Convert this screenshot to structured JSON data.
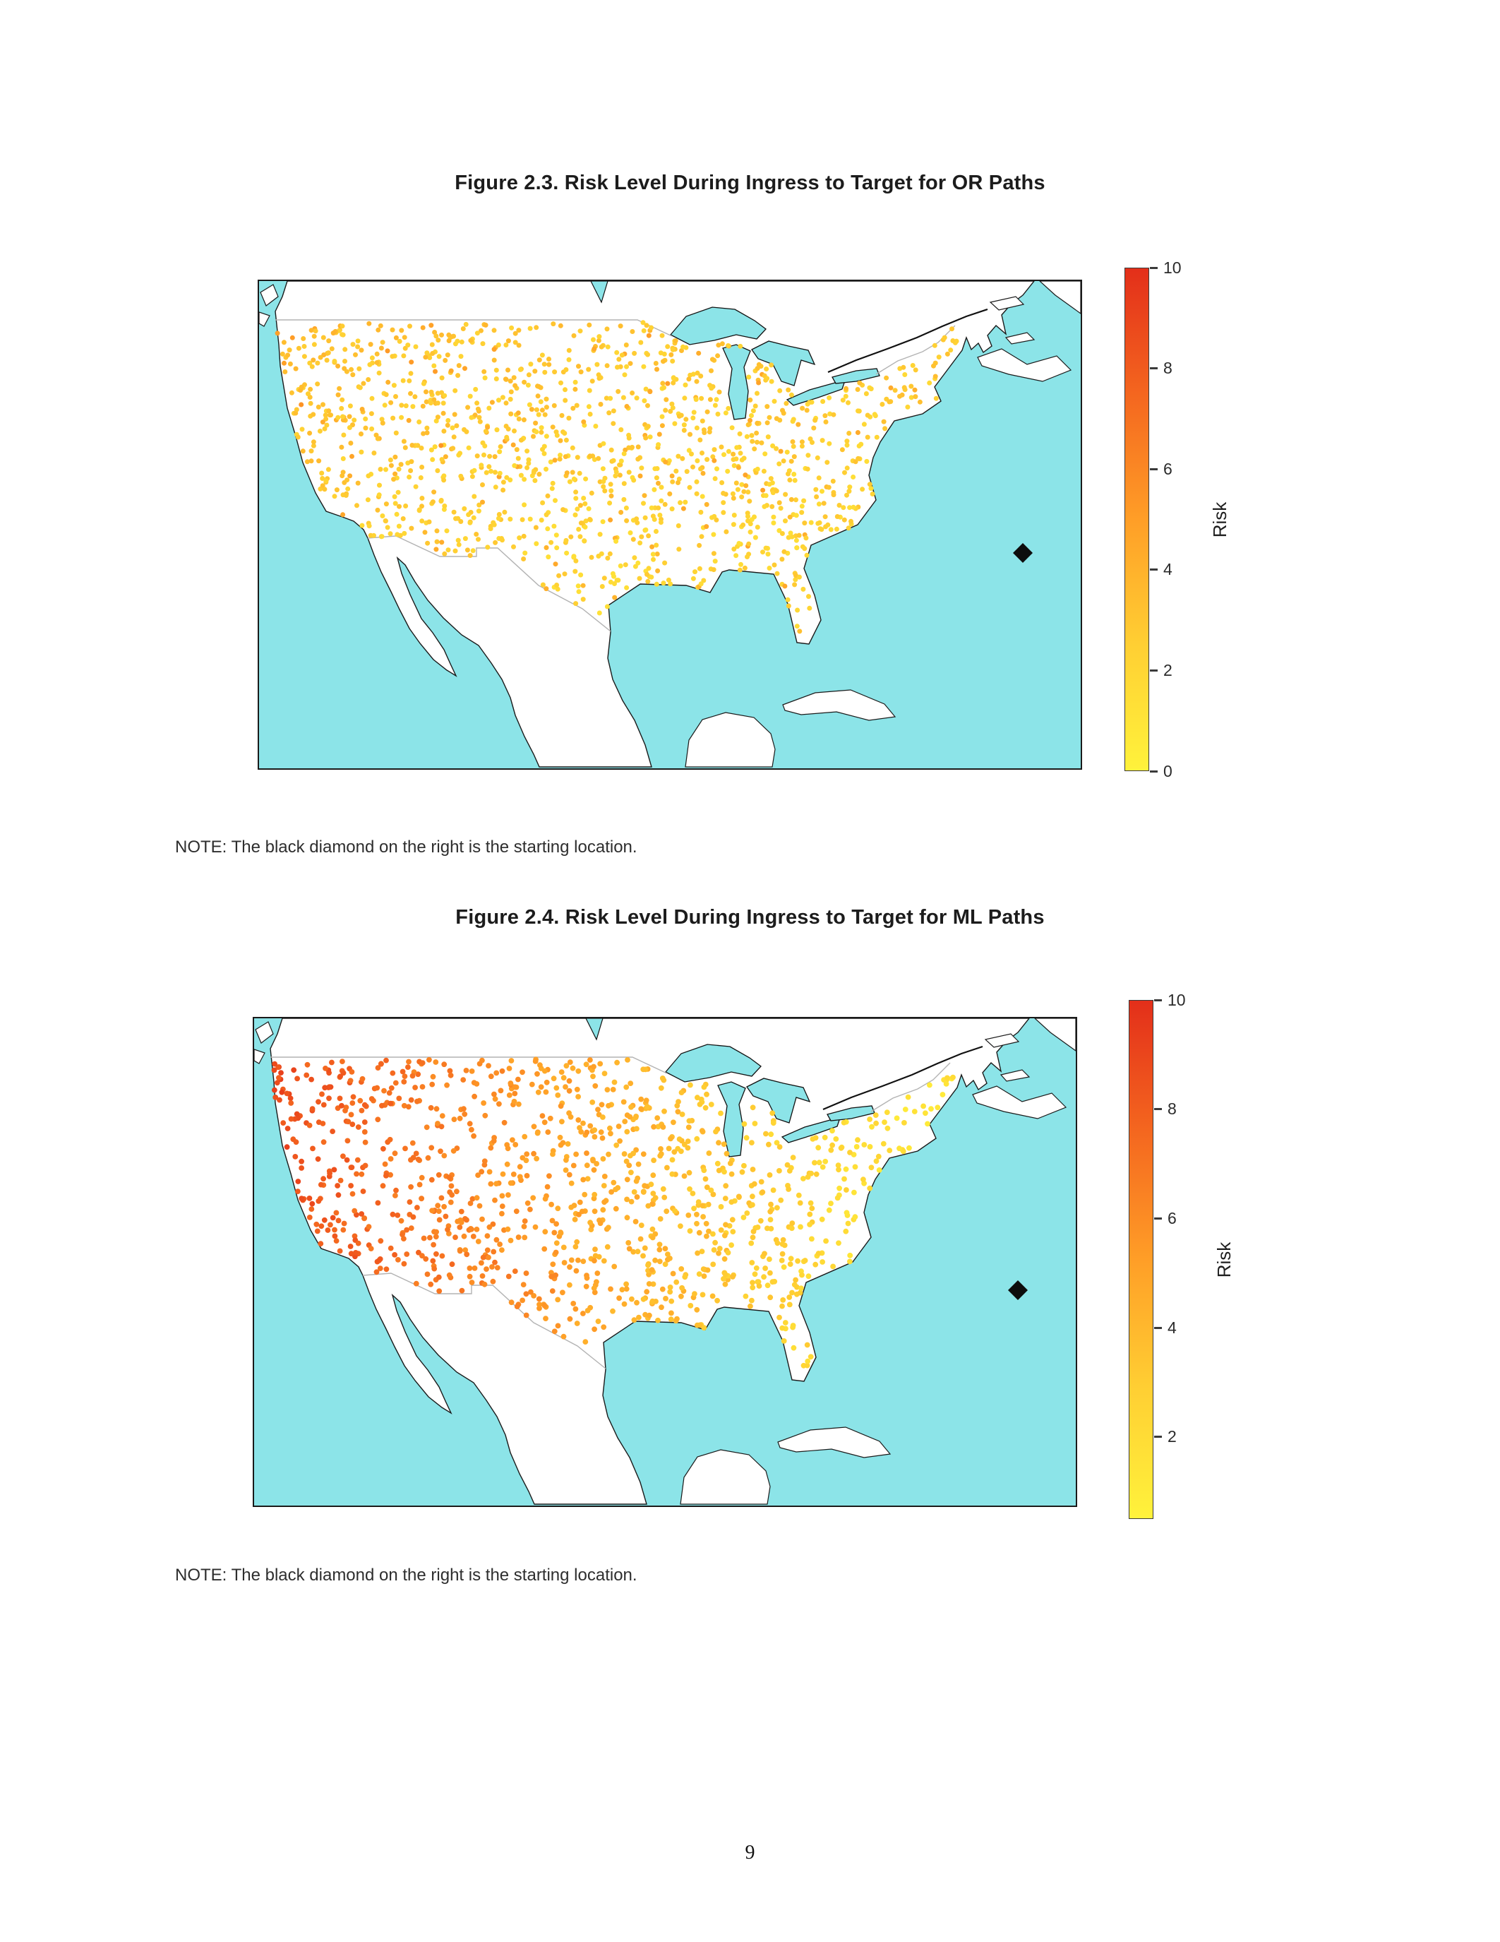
{
  "page": {
    "number": "9"
  },
  "figures": [
    {
      "id": "figure-2-3",
      "caption": "Figure 2.3. Risk Level During Ingress to Target for OR Paths",
      "note": "NOTE: The black diamond on the right is the starting location.",
      "colorbar": {
        "label": "Risk",
        "min": 0,
        "max": 10,
        "ticks": [
          0,
          2,
          4,
          6,
          8,
          10
        ]
      }
    },
    {
      "id": "figure-2-4",
      "caption": "Figure 2.4. Risk Level During Ingress to Target for ML Paths",
      "note": "NOTE: The black diamond on the right is the starting location.",
      "colorbar": {
        "label": "Risk",
        "min": 0.5,
        "max": 10,
        "ticks": [
          2,
          4,
          6,
          8,
          10
        ]
      }
    }
  ],
  "chart_data": [
    {
      "type": "scatter",
      "title": "Figure 2.3. Risk Level During Ingress to Target for OR Paths",
      "geography": "Contiguous United States with southern Canada, Mexico, Great Lakes and Cuba shown for context",
      "colorbar_label": "Risk",
      "colorbar_range": [
        0,
        10
      ],
      "colorbar_ticks": [
        0,
        2,
        4,
        6,
        8,
        10
      ],
      "n_points_approx": 1350,
      "risk_pattern": "Nearly uniform low risk (about 1-3, yellow to gold) at target points across the entire United States; slightly higher risk (about 3-5, light orange) scattered through the northern Midwest and interior West; lowest values in the South and along the East Coast.",
      "start_marker": {
        "shape": "diamond",
        "color": "#0d0d0d",
        "location": "Atlantic Ocean, off the U.S. east coast"
      },
      "ocean_color": "#8ce4e8",
      "land_color": "#ffffff",
      "colormap_stops": [
        "#fff23b",
        "#ffcf33",
        "#ff9e27",
        "#f4661f",
        "#e32f1a"
      ],
      "points": {
        "count": 1350,
        "seed": 42,
        "radius": 3.5,
        "model": "uniform-low",
        "params": {
          "base": 0.9,
          "random": 1.7,
          "north": 1.1,
          "west": 0.5,
          "hot_fraction": 0.1,
          "hot_boost": 1.4
        }
      }
    },
    {
      "type": "scatter",
      "title": "Figure 2.4. Risk Level During Ingress to Target for ML Paths",
      "geography": "Contiguous United States with southern Canada, Mexico, Great Lakes and Cuba shown for context",
      "colorbar_label": "Risk",
      "colorbar_range": [
        0.5,
        10
      ],
      "colorbar_ticks": [
        2,
        4,
        6,
        8,
        10
      ],
      "n_points_approx": 1150,
      "risk_pattern": "Strong east-west gradient: risk about 7-9 (red-orange) near the West Coast and interior West, about 4-6 (orange) through the Plains and Midwest, falling to about 1-2 (yellow) along the East Coast, Southeast and Gulf states.",
      "start_marker": {
        "shape": "diamond",
        "color": "#0d0d0d",
        "location": "Atlantic Ocean, off the U.S. east coast"
      },
      "ocean_color": "#8ce4e8",
      "land_color": "#ffffff",
      "colormap_stops": [
        "#fff23b",
        "#ffcf33",
        "#ff9e27",
        "#f4661f",
        "#e32f1a"
      ],
      "points": {
        "count": 1150,
        "seed": 7,
        "radius": 3.9,
        "model": "west-east-gradient",
        "params": {
          "west_peak": 8.6,
          "east_min": 1.0,
          "noise": 1.6,
          "exponent": 1.2,
          "southwest_boost": 0.5
        }
      }
    }
  ]
}
